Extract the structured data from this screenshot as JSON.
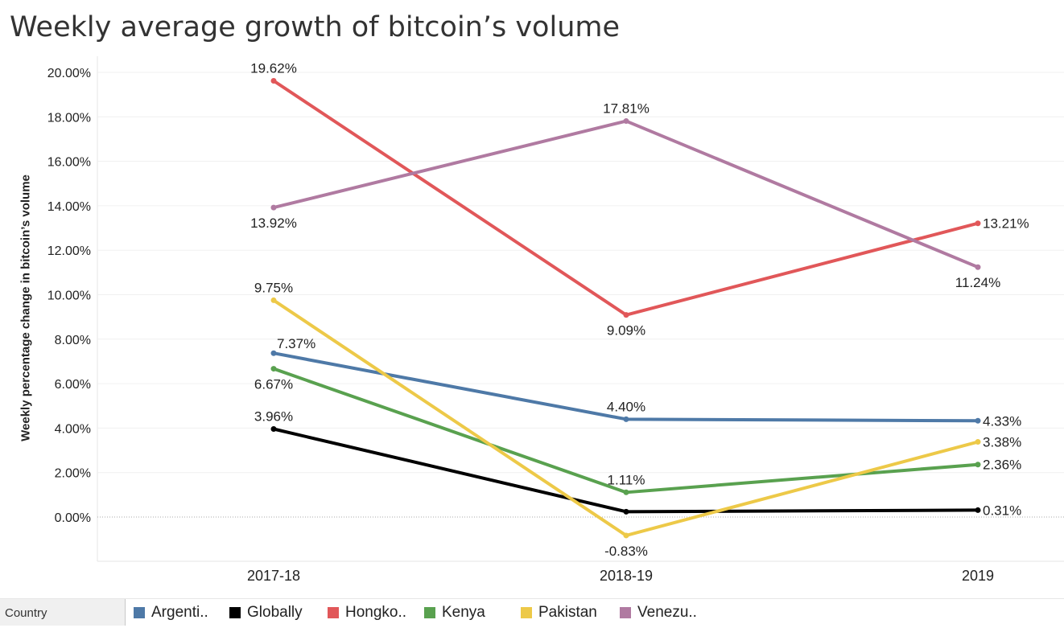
{
  "title": "Weekly average growth of bitcoin’s volume",
  "legend_title": "Country",
  "chart_data": {
    "type": "line",
    "title": "Weekly average growth of bitcoin’s volume",
    "xlabel": "",
    "ylabel": "Weekly percentage change in bitcoin’s volume",
    "categories": [
      "2017-18",
      "2018-19",
      "2019"
    ],
    "ylim": [
      -2.0,
      20.0
    ],
    "yticks": [
      "20.00%",
      "18.00%",
      "16.00%",
      "14.00%",
      "12.00%",
      "10.00%",
      "8.00%",
      "6.00%",
      "4.00%",
      "2.00%",
      "0.00%"
    ],
    "grid": true,
    "legend_position": "bottom",
    "series": [
      {
        "name": "Argenti..",
        "color": "#4e79a7",
        "values": [
          7.37,
          4.4,
          4.33
        ],
        "labels": [
          "7.37%",
          "4.40%",
          "4.33%"
        ]
      },
      {
        "name": "Globally",
        "color": "#000000",
        "values": [
          3.96,
          0.24,
          0.31
        ],
        "labels": [
          "3.96%",
          "",
          "0.31%"
        ]
      },
      {
        "name": "Hongko..",
        "color": "#e15759",
        "values": [
          19.62,
          9.09,
          13.21
        ],
        "labels": [
          "19.62%",
          "9.09%",
          "13.21%"
        ]
      },
      {
        "name": "Kenya",
        "color": "#59a14f",
        "values": [
          6.67,
          1.11,
          2.36
        ],
        "labels": [
          "6.67%",
          "1.11%",
          "2.36%"
        ]
      },
      {
        "name": "Pakistan",
        "color": "#edc948",
        "values": [
          9.75,
          -0.83,
          3.38
        ],
        "labels": [
          "9.75%",
          "-0.83%",
          "3.38%"
        ]
      },
      {
        "name": "Venezu..",
        "color": "#b07aa1",
        "values": [
          13.92,
          17.81,
          11.24
        ],
        "labels": [
          "13.92%",
          "17.81%",
          "11.24%"
        ]
      }
    ]
  }
}
